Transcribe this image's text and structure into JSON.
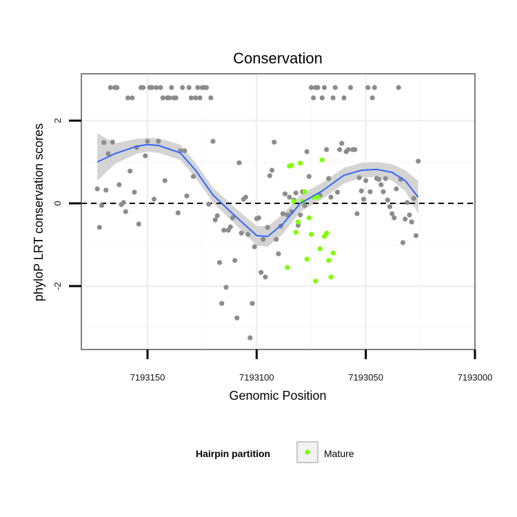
{
  "chart_data": {
    "type": "scatter",
    "title": "Conservation",
    "xlabel": "Genomic Position",
    "ylabel": "phyloP LRT conservation scores",
    "x_reversed": true,
    "xlim": [
      7193173,
      7193000
    ],
    "ylim": [
      -3.5,
      3.1
    ],
    "x_ticks": [
      7193150,
      7193100,
      7193050,
      7193000
    ],
    "x_tick_labels": [
      "7193150",
      "7193100",
      "7193050",
      "7193000"
    ],
    "y_ticks": [
      -2,
      0,
      2
    ],
    "y_tick_labels": [
      "-2",
      "0",
      "2"
    ],
    "reference_line_y": 0,
    "grid": true,
    "legend": {
      "title": "Hairpin partition",
      "entries": [
        {
          "label": "Mature",
          "color": "#7fff00"
        }
      ],
      "position": "bottom"
    },
    "colors": {
      "default_points": "#8c8c8c",
      "mature_points": "#7fff00",
      "smooth_line": "#3366ff",
      "ribbon": "#cccccc"
    },
    "series": [
      {
        "role": "default",
        "points": [
          [
            7193173,
            0.35
          ],
          [
            7193172,
            -0.58
          ],
          [
            7193171,
            -0.05
          ],
          [
            7193170,
            1.47
          ],
          [
            7193169,
            0.32
          ],
          [
            7193168,
            1.2
          ],
          [
            7193167,
            2.8
          ],
          [
            7193166,
            1.48
          ],
          [
            7193165,
            2.8
          ],
          [
            7193164,
            2.8
          ],
          [
            7193163,
            0.45
          ],
          [
            7193162,
            -0.03
          ],
          [
            7193161,
            0.02
          ],
          [
            7193160,
            -0.2
          ],
          [
            7193159,
            2.55
          ],
          [
            7193158,
            0.78
          ],
          [
            7193157,
            2.55
          ],
          [
            7193156,
            0.27
          ],
          [
            7193155,
            1.35
          ],
          [
            7193154,
            -0.5
          ],
          [
            7193153,
            2.8
          ],
          [
            7193152,
            2.8
          ],
          [
            7193151,
            1.15
          ],
          [
            7193150,
            1.5
          ],
          [
            7193149,
            2.8
          ],
          [
            7193148,
            2.8
          ],
          [
            7193147,
            0.1
          ],
          [
            7193146,
            2.8
          ],
          [
            7193145,
            1.5
          ],
          [
            7193144,
            2.8
          ],
          [
            7193143,
            2.55
          ],
          [
            7193142,
            0.55
          ],
          [
            7193141,
            2.55
          ],
          [
            7193140,
            2.55
          ],
          [
            7193139,
            2.8
          ],
          [
            7193138,
            2.55
          ],
          [
            7193137,
            2.55
          ],
          [
            7193136,
            -0.23
          ],
          [
            7193135,
            1.27
          ],
          [
            7193134,
            2.8
          ],
          [
            7193133,
            1.27
          ],
          [
            7193132,
            0.18
          ],
          [
            7193131,
            2.8
          ],
          [
            7193130,
            2.55
          ],
          [
            7193129,
            0.65
          ],
          [
            7193128,
            2.55
          ],
          [
            7193127,
            2.8
          ],
          [
            7193126,
            2.55
          ],
          [
            7193125,
            2.8
          ],
          [
            7193124,
            2.8
          ],
          [
            7193123,
            2.8
          ],
          [
            7193122,
            -0.02
          ],
          [
            7193121,
            2.55
          ],
          [
            7193120,
            1.5
          ],
          [
            7193119,
            -0.4
          ],
          [
            7193118,
            -0.3
          ],
          [
            7193117,
            -1.43
          ],
          [
            7193116,
            -2.42
          ],
          [
            7193115,
            -0.65
          ],
          [
            7193114,
            -2.03
          ],
          [
            7193113,
            -0.65
          ],
          [
            7193112,
            -0.57
          ],
          [
            7193111,
            -0.35
          ],
          [
            7193110,
            -1.38
          ],
          [
            7193109,
            -2.77
          ],
          [
            7193108,
            0.98
          ],
          [
            7193107,
            -0.72
          ],
          [
            7193106,
            0.1
          ],
          [
            7193105,
            0.15
          ],
          [
            7193104,
            -0.75
          ],
          [
            7193103,
            -3.25
          ],
          [
            7193102,
            -2.42
          ],
          [
            7193101,
            -1.05
          ],
          [
            7193100,
            -0.37
          ],
          [
            7193099,
            -0.35
          ],
          [
            7193098,
            -1.67
          ],
          [
            7193097,
            -0.87
          ],
          [
            7193096,
            -1.78
          ],
          [
            7193095,
            -0.58
          ],
          [
            7193094,
            0.67
          ],
          [
            7193093,
            0.8
          ],
          [
            7193092,
            1.48
          ],
          [
            7193091,
            -0.87
          ],
          [
            7193090,
            -1.22
          ],
          [
            7193089,
            -0.55
          ],
          [
            7193088,
            -0.25
          ],
          [
            7193087,
            0.23
          ],
          [
            7193086,
            -0.28
          ],
          [
            7193085,
            0.15
          ],
          [
            7193084,
            -0.2
          ],
          [
            7193083,
            0.08
          ],
          [
            7193082,
            0.25
          ],
          [
            7193081,
            -0.53
          ],
          [
            7193080,
            -0.28
          ],
          [
            7193079,
            0.28
          ],
          [
            7193078,
            -0.05
          ],
          [
            7193077,
            1.25
          ],
          [
            7193076,
            0.65
          ],
          [
            7193075,
            2.8
          ],
          [
            7193074,
            2.55
          ],
          [
            7193073,
            2.8
          ],
          [
            7193072,
            2.8
          ],
          [
            7193071,
            0.2
          ],
          [
            7193070,
            2.55
          ],
          [
            7193069,
            2.8
          ],
          [
            7193068,
            1.3
          ],
          [
            7193067,
            0.6
          ],
          [
            7193066,
            0.15
          ],
          [
            7193065,
            2.55
          ],
          [
            7193064,
            2.8
          ],
          [
            7193063,
            0.27
          ],
          [
            7193062,
            1.3
          ],
          [
            7193061,
            1.45
          ],
          [
            7193060,
            2.55
          ],
          [
            7193059,
            1.25
          ],
          [
            7193058,
            1.3
          ],
          [
            7193057,
            2.8
          ],
          [
            7193056,
            1.3
          ],
          [
            7193055,
            1.3
          ],
          [
            7193054,
            -0.25
          ],
          [
            7193053,
            0.62
          ],
          [
            7193052,
            0.3
          ],
          [
            7193051,
            0.1
          ],
          [
            7193050,
            0.55
          ],
          [
            7193049,
            2.8
          ],
          [
            7193048,
            0.28
          ],
          [
            7193047,
            2.55
          ],
          [
            7193046,
            2.8
          ],
          [
            7193045,
            0.6
          ],
          [
            7193044,
            0.58
          ],
          [
            7193043,
            0.45
          ],
          [
            7193042,
            0.28
          ],
          [
            7193041,
            0.6
          ],
          [
            7193040,
            0.08
          ],
          [
            7193039,
            -0.08
          ],
          [
            7193038,
            -0.25
          ],
          [
            7193037,
            -0.35
          ],
          [
            7193036,
            0.35
          ],
          [
            7193035,
            2.8
          ],
          [
            7193034,
            0.58
          ],
          [
            7193033,
            -0.95
          ],
          [
            7193032,
            -0.38
          ],
          [
            7193031,
            0.02
          ],
          [
            7193030,
            -0.28
          ],
          [
            7193029,
            -0.45
          ],
          [
            7193028,
            0.12
          ],
          [
            7193027,
            -0.78
          ],
          [
            7193026,
            1.02
          ]
        ]
      },
      {
        "role": "mature",
        "name": "Mature",
        "points": [
          [
            7193086,
            -1.55
          ],
          [
            7193085,
            0.9
          ],
          [
            7193084,
            0.92
          ],
          [
            7193083,
            0.05
          ],
          [
            7193082,
            -0.7
          ],
          [
            7193081,
            -0.45
          ],
          [
            7193080,
            0.97
          ],
          [
            7193079,
            0.05
          ],
          [
            7193078,
            0.28
          ],
          [
            7193077,
            -1.35
          ],
          [
            7193076,
            -0.35
          ],
          [
            7193075,
            -0.75
          ],
          [
            7193074,
            0.15
          ],
          [
            7193073,
            -1.88
          ],
          [
            7193072,
            0.15
          ],
          [
            7193071,
            -1.1
          ],
          [
            7193070,
            1.05
          ],
          [
            7193069,
            -0.8
          ],
          [
            7193068,
            -0.72
          ],
          [
            7193067,
            -1.38
          ],
          [
            7193066,
            -1.78
          ],
          [
            7193065,
            -1.2
          ]
        ]
      }
    ],
    "smooth": {
      "method": "loess",
      "line": [
        [
          7193173,
          1.0
        ],
        [
          7193165,
          1.2
        ],
        [
          7193155,
          1.38
        ],
        [
          7193150,
          1.42
        ],
        [
          7193145,
          1.4
        ],
        [
          7193135,
          1.22
        ],
        [
          7193128,
          0.8
        ],
        [
          7193120,
          0.2
        ],
        [
          7193110,
          -0.3
        ],
        [
          7193100,
          -0.78
        ],
        [
          7193095,
          -0.8
        ],
        [
          7193088,
          -0.5
        ],
        [
          7193080,
          0.0
        ],
        [
          7193070,
          0.3
        ],
        [
          7193060,
          0.68
        ],
        [
          7193052,
          0.8
        ],
        [
          7193045,
          0.82
        ],
        [
          7193038,
          0.75
        ],
        [
          7193032,
          0.55
        ],
        [
          7193026,
          0.15
        ]
      ],
      "se_band": [
        [
          7193173,
          0.55,
          1.7
        ],
        [
          7193165,
          0.95,
          1.45
        ],
        [
          7193155,
          1.2,
          1.56
        ],
        [
          7193150,
          1.25,
          1.58
        ],
        [
          7193145,
          1.22,
          1.58
        ],
        [
          7193135,
          1.05,
          1.42
        ],
        [
          7193128,
          0.62,
          0.98
        ],
        [
          7193120,
          0.02,
          0.38
        ],
        [
          7193110,
          -0.5,
          -0.1
        ],
        [
          7193100,
          -1.02,
          -0.55
        ],
        [
          7193095,
          -1.05,
          -0.56
        ],
        [
          7193088,
          -0.74,
          -0.26
        ],
        [
          7193080,
          -0.2,
          0.2
        ],
        [
          7193070,
          0.1,
          0.5
        ],
        [
          7193060,
          0.48,
          0.86
        ],
        [
          7193052,
          0.62,
          0.98
        ],
        [
          7193045,
          0.64,
          1.0
        ],
        [
          7193038,
          0.55,
          0.95
        ],
        [
          7193032,
          0.3,
          0.8
        ],
        [
          7193026,
          -0.25,
          0.55
        ]
      ]
    }
  }
}
